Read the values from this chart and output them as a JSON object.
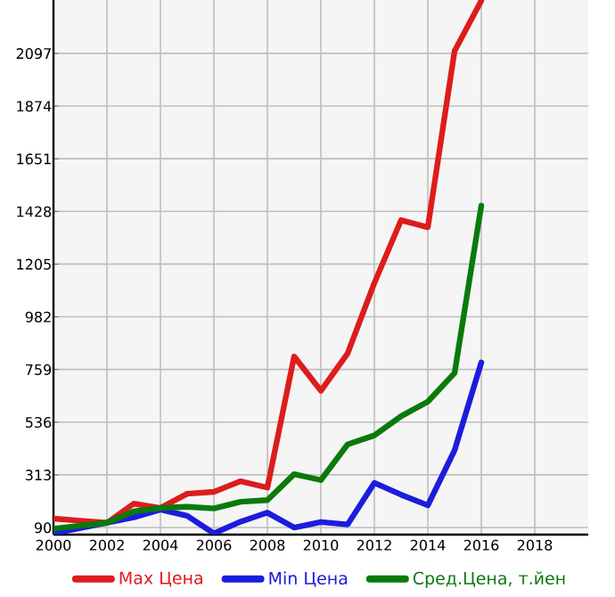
{
  "chart_data": {
    "type": "line",
    "x": [
      2000,
      2001,
      2002,
      2003,
      2004,
      2005,
      2006,
      2007,
      2008,
      2009,
      2010,
      2011,
      2012,
      2013,
      2014,
      2015,
      2016
    ],
    "series": [
      {
        "name": "Max Цена",
        "color": "#dd1c1c",
        "values": [
          128,
          119,
          110,
          191,
          173,
          233,
          241,
          286,
          259,
          814,
          669,
          827,
          1125,
          1391,
          1361,
          2107,
          2320
        ]
      },
      {
        "name": "Min Цена",
        "color": "#1c1cdd",
        "values": [
          65,
          88,
          110,
          133,
          166,
          140,
          65,
          115,
          153,
          90,
          113,
          103,
          279,
          229,
          184,
          417,
          789
        ]
      },
      {
        "name": "Сред.Цена, т.йен",
        "color": "#0a7a0a",
        "values": [
          85,
          98,
          110,
          158,
          173,
          178,
          171,
          199,
          206,
          316,
          291,
          442,
          480,
          561,
          623,
          744,
          1453
        ]
      }
    ],
    "xlim": [
      2000,
      2020
    ],
    "xticks": [
      2000,
      2002,
      2004,
      2006,
      2008,
      2010,
      2012,
      2014,
      2016,
      2018
    ],
    "ylim": [
      60,
      2323
    ],
    "yticks": [
      90,
      313,
      536,
      759,
      982,
      1205,
      1428,
      1651,
      1874,
      2097
    ],
    "grid": true,
    "legend": "bottom",
    "marker": "none",
    "line_style": "solid"
  }
}
